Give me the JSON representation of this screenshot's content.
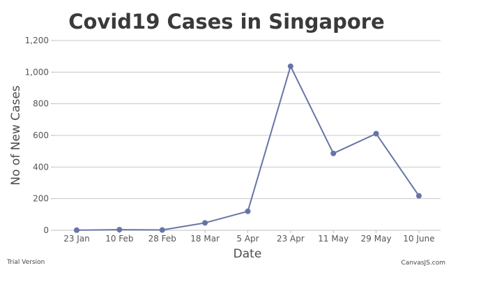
{
  "chart_data": {
    "type": "line",
    "title": "Covid19 Cases in Singapore",
    "xlabel": "Date",
    "ylabel": "No of New Cases",
    "categories": [
      "23 Jan",
      "10 Feb",
      "28 Feb",
      "18 Mar",
      "5 Apr",
      "23 Apr",
      "11 May",
      "29 May",
      "10 June"
    ],
    "series": [
      {
        "values": [
          1,
          4,
          2,
          47,
          120,
          1037,
          486,
          611,
          218
        ]
      }
    ],
    "yticks": [
      "0",
      "200",
      "400",
      "600",
      "800",
      "1,000",
      "1,200"
    ],
    "ylim": [
      0,
      1200
    ],
    "grid": "horizontal",
    "legend": "none",
    "colors": {
      "line": "#6675a6",
      "grid": "#c8c8c8",
      "axis": "#bdbdbd"
    }
  },
  "footer": {
    "trial_text": "Trial Version",
    "credit_text": "CanvasJS.com"
  }
}
